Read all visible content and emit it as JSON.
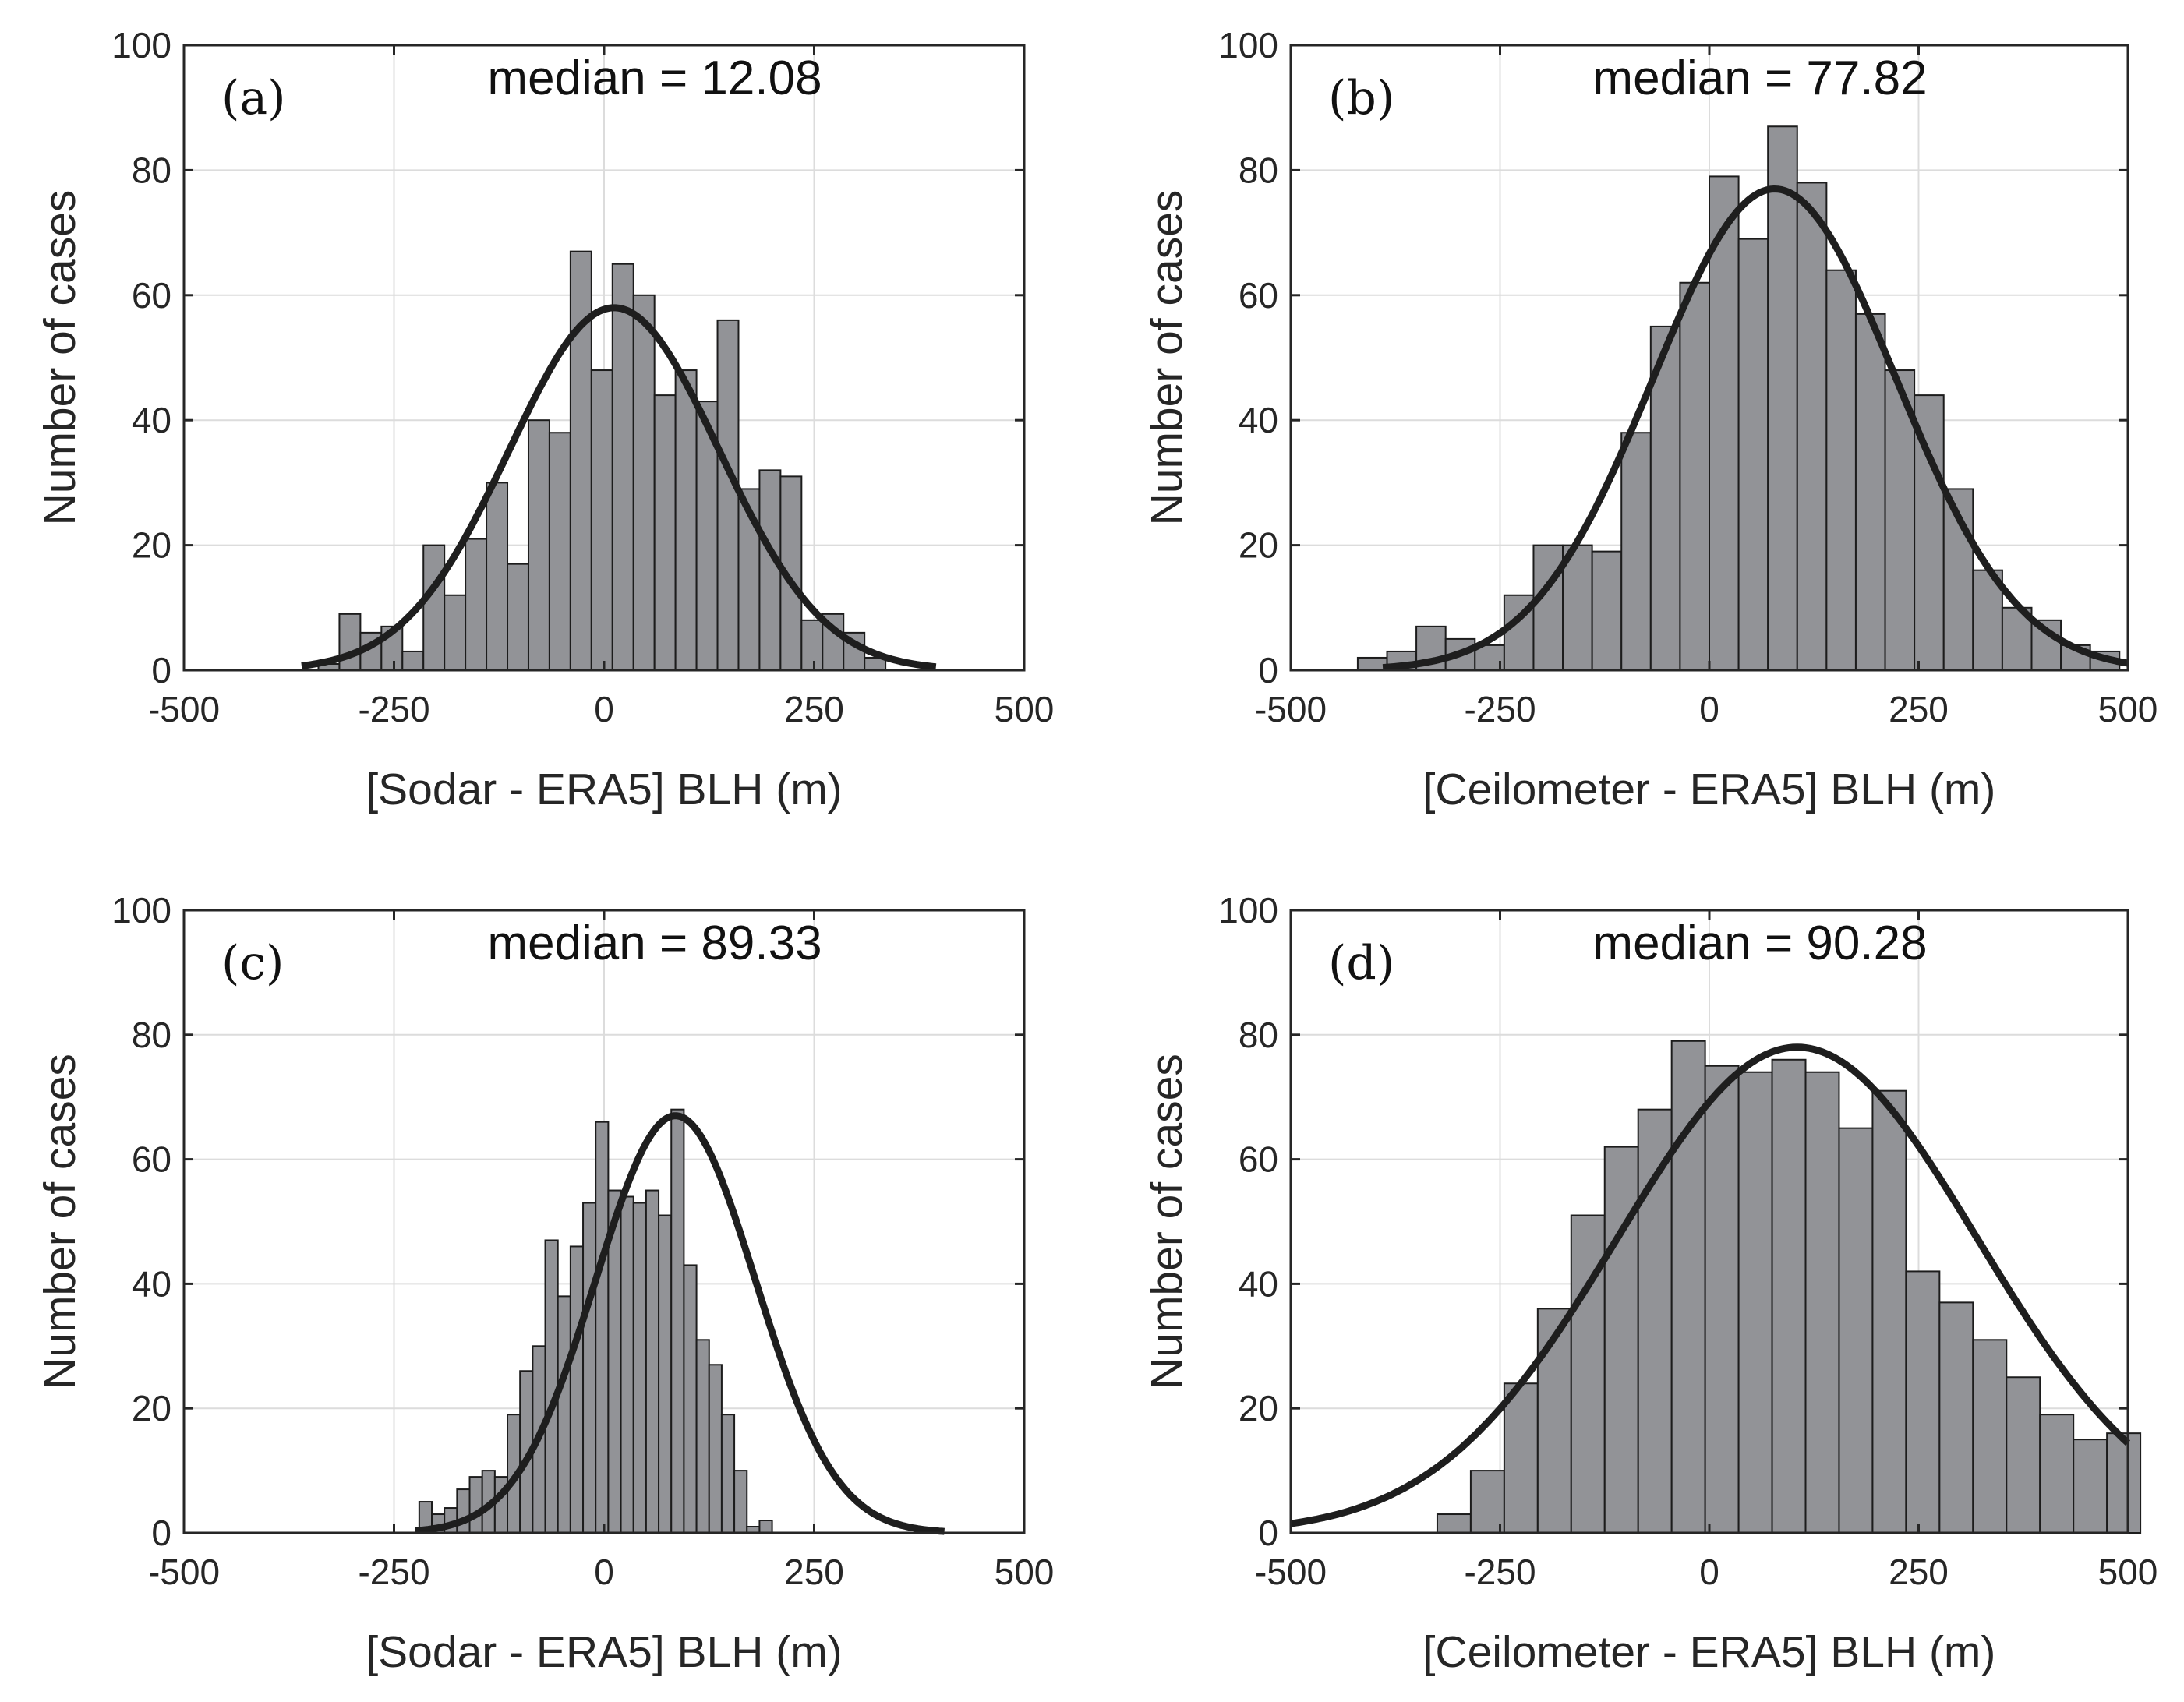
{
  "chart_data": [
    {
      "type": "bar",
      "panel_label": "(a)",
      "title": "median = 12.08",
      "median": 12.08,
      "xlabel": "[Sodar - ERA5] BLH (m)",
      "ylabel": "Number of cases",
      "xlim": [
        -500,
        500
      ],
      "ylim": [
        0,
        100
      ],
      "xticks": [
        "-500",
        "-250",
        "0",
        "250",
        "500"
      ],
      "yticks": [
        "0",
        "20",
        "40",
        "60",
        "80",
        "100"
      ],
      "bin_start": -340,
      "bin_width": 25,
      "values": [
        1,
        9,
        6,
        7,
        3,
        20,
        12,
        21,
        30,
        17,
        40,
        38,
        67,
        48,
        65,
        60,
        44,
        48,
        43,
        56,
        29,
        32,
        31,
        8,
        9,
        6,
        2
      ],
      "fit": {
        "mean": 12,
        "sd": 125,
        "peak": 58,
        "range": [
          -360,
          395
        ]
      }
    },
    {
      "type": "bar",
      "panel_label": "(b)",
      "title": "median = 77.82",
      "median": 77.82,
      "xlabel": "[Ceilometer - ERA5] BLH (m)",
      "ylabel": "Number of cases",
      "xlim": [
        -500,
        500
      ],
      "ylim": [
        0,
        100
      ],
      "xticks": [
        "-500",
        "-250",
        "0",
        "250",
        "500"
      ],
      "yticks": [
        "0",
        "20",
        "40",
        "60",
        "80",
        "100"
      ],
      "bin_start": -420,
      "bin_width": 35,
      "values": [
        2,
        3,
        7,
        5,
        4,
        12,
        20,
        20,
        19,
        38,
        55,
        62,
        79,
        69,
        87,
        78,
        64,
        57,
        48,
        44,
        29,
        16,
        10,
        8,
        4,
        3
      ],
      "fit": {
        "mean": 78,
        "sd": 145,
        "peak": 77,
        "range": [
          -390,
          500
        ]
      }
    },
    {
      "type": "bar",
      "panel_label": "(c)",
      "title": "median = 89.33",
      "median": 89.33,
      "xlabel": "[Sodar - ERA5] BLH (m)",
      "ylabel": "Number of cases",
      "xlim": [
        -500,
        500
      ],
      "ylim": [
        0,
        100
      ],
      "xticks": [
        "-500",
        "-250",
        "0",
        "250",
        "500"
      ],
      "yticks": [
        "0",
        "20",
        "40",
        "60",
        "80",
        "100"
      ],
      "bin_start": -220,
      "bin_width": 15,
      "values": [
        5,
        3,
        4,
        7,
        9,
        10,
        9,
        19,
        26,
        30,
        47,
        38,
        46,
        53,
        66,
        55,
        54,
        53,
        55,
        51,
        68,
        43,
        31,
        27,
        19,
        10,
        1,
        2
      ],
      "fit": {
        "mean": 85,
        "sd": 95,
        "peak": 67,
        "range": [
          -225,
          405
        ]
      }
    },
    {
      "type": "bar",
      "panel_label": "(d)",
      "title": "median = 90.28",
      "median": 90.28,
      "xlabel": "[Ceilometer - ERA5] BLH (m)",
      "ylabel": "Number of cases",
      "xlim": [
        -500,
        500
      ],
      "ylim": [
        0,
        100
      ],
      "xticks": [
        "-500",
        "-250",
        "0",
        "250",
        "500"
      ],
      "yticks": [
        "0",
        "20",
        "40",
        "60",
        "80",
        "100"
      ],
      "bin_start": -325,
      "bin_width": 40,
      "values": [
        3,
        10,
        24,
        36,
        51,
        62,
        68,
        79,
        75,
        74,
        76,
        74,
        65,
        71,
        42,
        37,
        31,
        25,
        19,
        15,
        16
      ],
      "fit": {
        "mean": 105,
        "sd": 215,
        "peak": 78,
        "range": [
          -500,
          500
        ]
      }
    }
  ]
}
